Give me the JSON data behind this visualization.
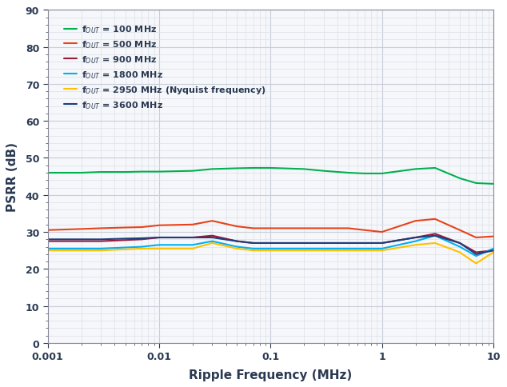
{
  "title": "",
  "xlabel": "Ripple Frequency (MHz)",
  "ylabel": "PSRR (dB)",
  "xlim": [
    0.001,
    10
  ],
  "ylim": [
    0,
    90
  ],
  "yticks": [
    0,
    10,
    20,
    30,
    40,
    50,
    60,
    70,
    80,
    90
  ],
  "plot_bg_color": "#f5f7fa",
  "fig_bg_color": "#ffffff",
  "grid_major_color": "#c8cdd8",
  "grid_minor_color": "#dde0e8",
  "series": [
    {
      "label": "f$_{OUT}$ = 100 MHz",
      "color": "#00b050",
      "x": [
        0.001,
        0.002,
        0.003,
        0.005,
        0.007,
        0.01,
        0.02,
        0.03,
        0.05,
        0.07,
        0.1,
        0.2,
        0.3,
        0.5,
        0.7,
        1.0,
        2.0,
        3.0,
        5.0,
        7.0,
        10.0
      ],
      "y": [
        46.0,
        46.0,
        46.2,
        46.2,
        46.3,
        46.3,
        46.5,
        47.0,
        47.2,
        47.3,
        47.3,
        47.0,
        46.5,
        46.0,
        45.8,
        45.8,
        47.0,
        47.3,
        44.5,
        43.2,
        43.0
      ]
    },
    {
      "label": "f$_{OUT}$ = 500 MHz",
      "color": "#e8431a",
      "x": [
        0.001,
        0.002,
        0.003,
        0.005,
        0.007,
        0.01,
        0.02,
        0.03,
        0.05,
        0.07,
        0.1,
        0.2,
        0.3,
        0.5,
        0.7,
        1.0,
        2.0,
        3.0,
        5.0,
        7.0,
        10.0
      ],
      "y": [
        30.5,
        30.8,
        31.0,
        31.2,
        31.3,
        31.8,
        32.0,
        33.0,
        31.5,
        31.0,
        31.0,
        31.0,
        31.0,
        31.0,
        30.5,
        30.0,
        33.0,
        33.5,
        30.5,
        28.5,
        28.8
      ]
    },
    {
      "label": "f$_{OUT}$ = 900 MHz",
      "color": "#9b1a3a",
      "x": [
        0.001,
        0.002,
        0.003,
        0.005,
        0.007,
        0.01,
        0.02,
        0.03,
        0.05,
        0.07,
        0.1,
        0.2,
        0.3,
        0.5,
        0.7,
        1.0,
        2.0,
        3.0,
        5.0,
        7.0,
        10.0
      ],
      "y": [
        27.5,
        27.5,
        27.5,
        27.8,
        28.0,
        28.5,
        28.5,
        29.0,
        27.5,
        27.0,
        27.0,
        27.0,
        27.0,
        27.0,
        27.0,
        27.0,
        28.5,
        29.5,
        27.0,
        24.5,
        25.0
      ]
    },
    {
      "label": "f$_{OUT}$ = 1800 MHz",
      "color": "#00b0f0",
      "x": [
        0.001,
        0.002,
        0.003,
        0.005,
        0.007,
        0.01,
        0.02,
        0.03,
        0.05,
        0.07,
        0.1,
        0.2,
        0.3,
        0.5,
        0.7,
        1.0,
        2.0,
        3.0,
        5.0,
        7.0,
        10.0
      ],
      "y": [
        25.5,
        25.5,
        25.5,
        25.8,
        26.0,
        26.5,
        26.5,
        27.5,
        26.0,
        25.5,
        25.5,
        25.5,
        25.5,
        25.5,
        25.5,
        25.5,
        27.5,
        29.0,
        26.0,
        23.5,
        25.5
      ]
    },
    {
      "label": "f$_{OUT}$ = 2950 MHz (Nyquist frequency)",
      "color": "#ffc000",
      "x": [
        0.001,
        0.002,
        0.003,
        0.005,
        0.007,
        0.01,
        0.02,
        0.03,
        0.05,
        0.07,
        0.1,
        0.2,
        0.3,
        0.5,
        0.7,
        1.0,
        2.0,
        3.0,
        5.0,
        7.0,
        10.0
      ],
      "y": [
        25.0,
        25.0,
        25.0,
        25.3,
        25.5,
        25.5,
        25.5,
        27.0,
        25.5,
        25.0,
        25.0,
        25.0,
        25.0,
        25.0,
        25.0,
        25.0,
        26.5,
        27.0,
        24.5,
        21.5,
        24.5
      ]
    },
    {
      "label": "f$_{OUT}$ = 3600 MHz",
      "color": "#1f3d7a",
      "x": [
        0.001,
        0.002,
        0.003,
        0.005,
        0.007,
        0.01,
        0.02,
        0.03,
        0.05,
        0.07,
        0.1,
        0.2,
        0.3,
        0.5,
        0.7,
        1.0,
        2.0,
        3.0,
        5.0,
        7.0,
        10.0
      ],
      "y": [
        28.0,
        28.0,
        28.0,
        28.2,
        28.3,
        28.5,
        28.5,
        28.5,
        27.5,
        27.0,
        27.0,
        27.0,
        27.0,
        27.0,
        27.0,
        27.0,
        28.5,
        29.0,
        27.0,
        24.0,
        25.0
      ]
    }
  ],
  "legend_loc": "upper left",
  "text_color": "#2b3a52",
  "tick_color": "#2b3a52",
  "axis_label_fontsize": 11,
  "tick_fontsize": 9,
  "legend_fontsize": 8,
  "linewidth": 1.5
}
